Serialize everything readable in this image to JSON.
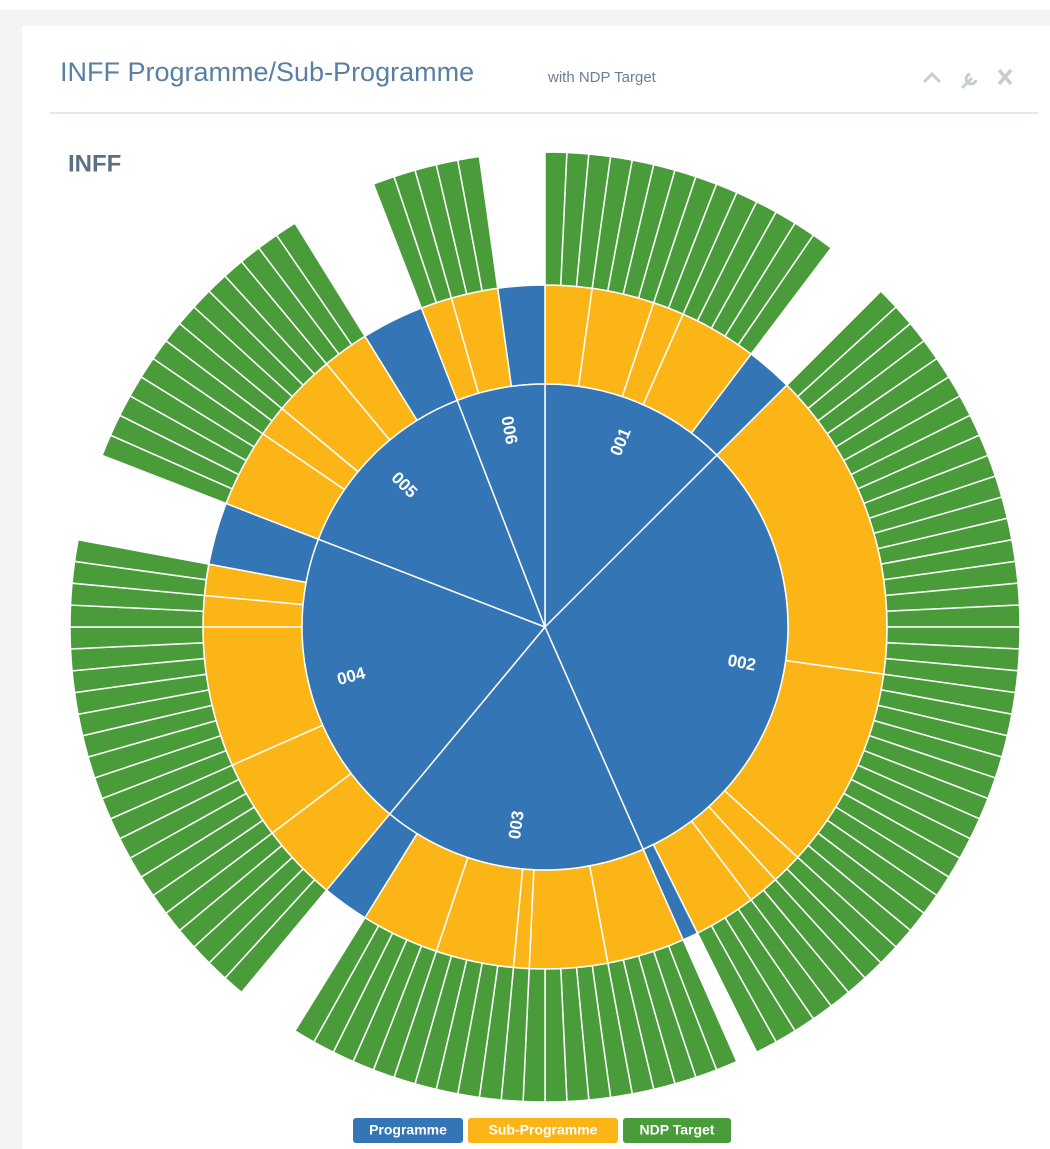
{
  "header": {
    "title": "INFF Programme/Sub-Programme",
    "subtitle": "with NDP Target"
  },
  "chart_data": {
    "type": "sunburst",
    "title": "INFF",
    "colors": {
      "programme": "#3476b5",
      "sub_programme": "#fbb516",
      "target": "#4a9c3a"
    },
    "legend": [
      "Programme",
      "Sub-Programme",
      "NDP Target"
    ],
    "programmes": [
      {
        "label": "001",
        "sub_programmes": [
          {
            "value": 3,
            "has_targets": true
          },
          {
            "value": 4,
            "has_targets": true
          },
          {
            "value": 2,
            "has_targets": true
          },
          {
            "value": 5,
            "has_targets": true
          },
          {
            "value": 3,
            "has_targets": false
          }
        ]
      },
      {
        "label": "002",
        "sub_programmes": [
          {
            "value": 20,
            "has_targets": true
          },
          {
            "value": 13,
            "has_targets": true
          },
          {
            "value": 2,
            "has_targets": true
          },
          {
            "value": 2,
            "has_targets": true
          },
          {
            "value": 4,
            "has_targets": true
          },
          {
            "value": 1,
            "has_targets": false
          }
        ]
      },
      {
        "label": "003",
        "sub_programmes": [
          {
            "value": 5,
            "has_targets": true
          },
          {
            "value": 5,
            "has_targets": true
          },
          {
            "value": 1,
            "has_targets": true
          },
          {
            "value": 5,
            "has_targets": true
          },
          {
            "value": 5,
            "has_targets": true
          },
          {
            "value": 3,
            "has_targets": false
          }
        ]
      },
      {
        "label": "004",
        "sub_programmes": [
          {
            "value": 5,
            "has_targets": true
          },
          {
            "value": 5,
            "has_targets": true
          },
          {
            "value": 9,
            "has_targets": true
          },
          {
            "value": 2,
            "has_targets": true
          },
          {
            "value": 2,
            "has_targets": true
          },
          {
            "value": 4,
            "has_targets": false
          }
        ]
      },
      {
        "label": "005",
        "sub_programmes": [
          {
            "value": 5,
            "has_targets": true
          },
          {
            "value": 2,
            "has_targets": true
          },
          {
            "value": 4,
            "has_targets": true
          },
          {
            "value": 3,
            "has_targets": true
          },
          {
            "value": 4,
            "has_targets": false
          }
        ]
      },
      {
        "label": "006",
        "sub_programmes": [
          {
            "value": 2,
            "has_targets": true
          },
          {
            "value": 3,
            "has_targets": true
          },
          {
            "value": 3,
            "has_targets": false
          }
        ]
      }
    ]
  }
}
